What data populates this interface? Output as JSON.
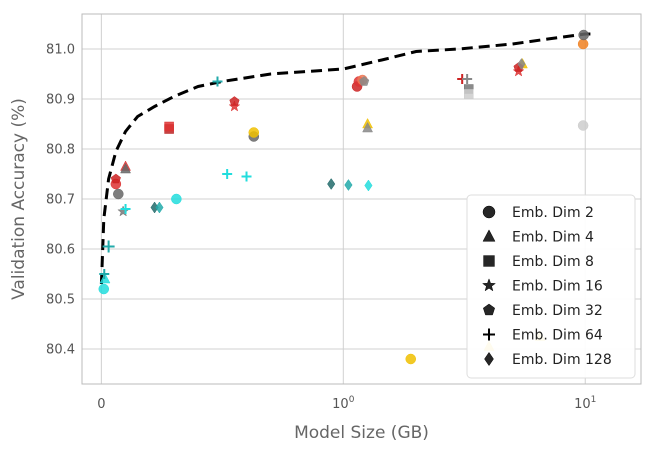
{
  "chart_data": {
    "type": "scatter",
    "title": "",
    "xlabel": "Model Size (GB)",
    "ylabel": "Validation Accuracy (%)",
    "xscale": "symlog",
    "xlim": [
      -0.08,
      17
    ],
    "ylim": [
      80.33,
      81.07
    ],
    "x_ticks": [
      {
        "value": 0,
        "label": "0"
      },
      {
        "value": 1,
        "label": "10^0"
      },
      {
        "value": 10,
        "label": "10^1"
      }
    ],
    "y_ticks": [
      {
        "value": 80.4,
        "label": "80.4"
      },
      {
        "value": 80.5,
        "label": "80.5"
      },
      {
        "value": 80.6,
        "label": "80.6"
      },
      {
        "value": 80.7,
        "label": "80.7"
      },
      {
        "value": 80.8,
        "label": "80.8"
      },
      {
        "value": 80.9,
        "label": "80.9"
      },
      {
        "value": 81.0,
        "label": "81.0"
      }
    ],
    "grid": true,
    "legend_position": "bottom-right",
    "legend": [
      {
        "label": "Emb. Dim 2",
        "marker": "circle"
      },
      {
        "label": "Emb. Dim 4",
        "marker": "triangle"
      },
      {
        "label": "Emb. Dim 8",
        "marker": "square"
      },
      {
        "label": "Emb. Dim 16",
        "marker": "star"
      },
      {
        "label": "Emb. Dim 32",
        "marker": "pentagon"
      },
      {
        "label": "Emb. Dim 64",
        "marker": "plus"
      },
      {
        "label": "Emb. Dim 128",
        "marker": "diamond"
      }
    ],
    "frontier": {
      "style": "dashed",
      "color": "#000000",
      "x": [
        0,
        0.01,
        0.03,
        0.06,
        0.1,
        0.15,
        0.22,
        0.3,
        0.4,
        0.5,
        0.7,
        1.0,
        1.5,
        2.0,
        3.0,
        5.0,
        7.0,
        10.0,
        10.5
      ],
      "y": [
        80.53,
        80.66,
        80.74,
        80.795,
        80.835,
        80.865,
        80.885,
        80.905,
        80.925,
        80.935,
        80.95,
        80.96,
        80.98,
        80.995,
        81.0,
        81.01,
        81.02,
        81.03,
        81.03
      ]
    },
    "series": [
      {
        "name": "Emb. Dim 2",
        "marker": "circle",
        "points": [
          {
            "x": 0.01,
            "y": 80.52,
            "color": "#22dddd"
          },
          {
            "x": 0.07,
            "y": 80.71,
            "color": "#666666"
          },
          {
            "x": 0.06,
            "y": 80.73,
            "color": "#dd3333"
          },
          {
            "x": 0.31,
            "y": 80.7,
            "color": "#22dddd"
          },
          {
            "x": 0.63,
            "y": 80.825,
            "color": "#666666"
          },
          {
            "x": 0.63,
            "y": 80.833,
            "color": "#f0c000"
          },
          {
            "x": 1.14,
            "y": 80.925,
            "color": "#cc2222"
          },
          {
            "x": 1.16,
            "y": 80.935,
            "color": "#dd3333"
          },
          {
            "x": 1.2,
            "y": 80.938,
            "color": "#ee7755"
          },
          {
            "x": 1.9,
            "y": 80.38,
            "color": "#f0c000"
          },
          {
            "x": 9.8,
            "y": 80.847,
            "color": "#cccccc"
          },
          {
            "x": 9.8,
            "y": 81.01,
            "color": "#f08020"
          },
          {
            "x": 9.85,
            "y": 81.028,
            "color": "#666666"
          }
        ]
      },
      {
        "name": "Emb. Dim 4",
        "marker": "triangle",
        "points": [
          {
            "x": 0.015,
            "y": 80.54,
            "color": "#22dddd"
          },
          {
            "x": 0.1,
            "y": 80.765,
            "color": "#dd3333"
          },
          {
            "x": 0.1,
            "y": 80.76,
            "color": "#666666"
          },
          {
            "x": 1.26,
            "y": 80.85,
            "color": "#f0c000"
          },
          {
            "x": 1.26,
            "y": 80.842,
            "color": "#888888"
          },
          {
            "x": 4.0,
            "y": 80.405,
            "color": "#f0c000"
          },
          {
            "x": 6.5,
            "y": 80.425,
            "color": "#f0c000"
          },
          {
            "x": 5.5,
            "y": 80.97,
            "color": "#f0c000"
          }
        ]
      },
      {
        "name": "Emb. Dim 8",
        "marker": "square",
        "points": [
          {
            "x": 0.28,
            "y": 80.84,
            "color": "#bb2222"
          },
          {
            "x": 0.28,
            "y": 80.845,
            "color": "#dd3333"
          },
          {
            "x": 3.3,
            "y": 80.92,
            "color": "#777777"
          },
          {
            "x": 3.3,
            "y": 80.91,
            "color": "#cccccc"
          }
        ]
      },
      {
        "name": "Emb. Dim 16",
        "marker": "star",
        "points": [
          {
            "x": 0.09,
            "y": 80.675,
            "color": "#777777"
          },
          {
            "x": 0.55,
            "y": 80.885,
            "color": "#dd3333"
          },
          {
            "x": 5.3,
            "y": 80.955,
            "color": "#dd3333"
          }
        ]
      },
      {
        "name": "Emb. Dim 32",
        "marker": "pentagon",
        "points": [
          {
            "x": 0.06,
            "y": 80.74,
            "color": "#cc2222"
          },
          {
            "x": 0.55,
            "y": 80.895,
            "color": "#cc2222"
          },
          {
            "x": 1.22,
            "y": 80.935,
            "color": "#888888"
          },
          {
            "x": 5.3,
            "y": 80.963,
            "color": "#cc2222"
          }
        ]
      },
      {
        "name": "Emb. Dim 64",
        "marker": "plus",
        "points": [
          {
            "x": 0.012,
            "y": 80.55,
            "color": "#22aaaa"
          },
          {
            "x": 0.1,
            "y": 80.68,
            "color": "#22dddd"
          },
          {
            "x": 0.48,
            "y": 80.935,
            "color": "#22aaaa"
          },
          {
            "x": 0.52,
            "y": 80.75,
            "color": "#22dddd"
          },
          {
            "x": 0.6,
            "y": 80.745,
            "color": "#22dddd"
          },
          {
            "x": 3.1,
            "y": 80.94,
            "color": "#cc2222"
          },
          {
            "x": 3.25,
            "y": 80.94,
            "color": "#888888"
          }
        ]
      },
      {
        "name": "Emb. Dim 128",
        "marker": "diamond",
        "points": [
          {
            "x": 0.22,
            "y": 80.683,
            "color": "#226b6b"
          },
          {
            "x": 0.24,
            "y": 80.683,
            "color": "#22aaaa"
          },
          {
            "x": 0.95,
            "y": 80.73,
            "color": "#226b6b"
          },
          {
            "x": 1.05,
            "y": 80.728,
            "color": "#22aaaa"
          },
          {
            "x": 1.27,
            "y": 80.727,
            "color": "#22dddd"
          },
          {
            "x": 5.45,
            "y": 80.97,
            "color": "#888888"
          }
        ]
      }
    ],
    "misc_points": [
      {
        "x": 0.03,
        "y": 80.605,
        "color": "#22aaaa",
        "marker": "plus"
      }
    ]
  }
}
